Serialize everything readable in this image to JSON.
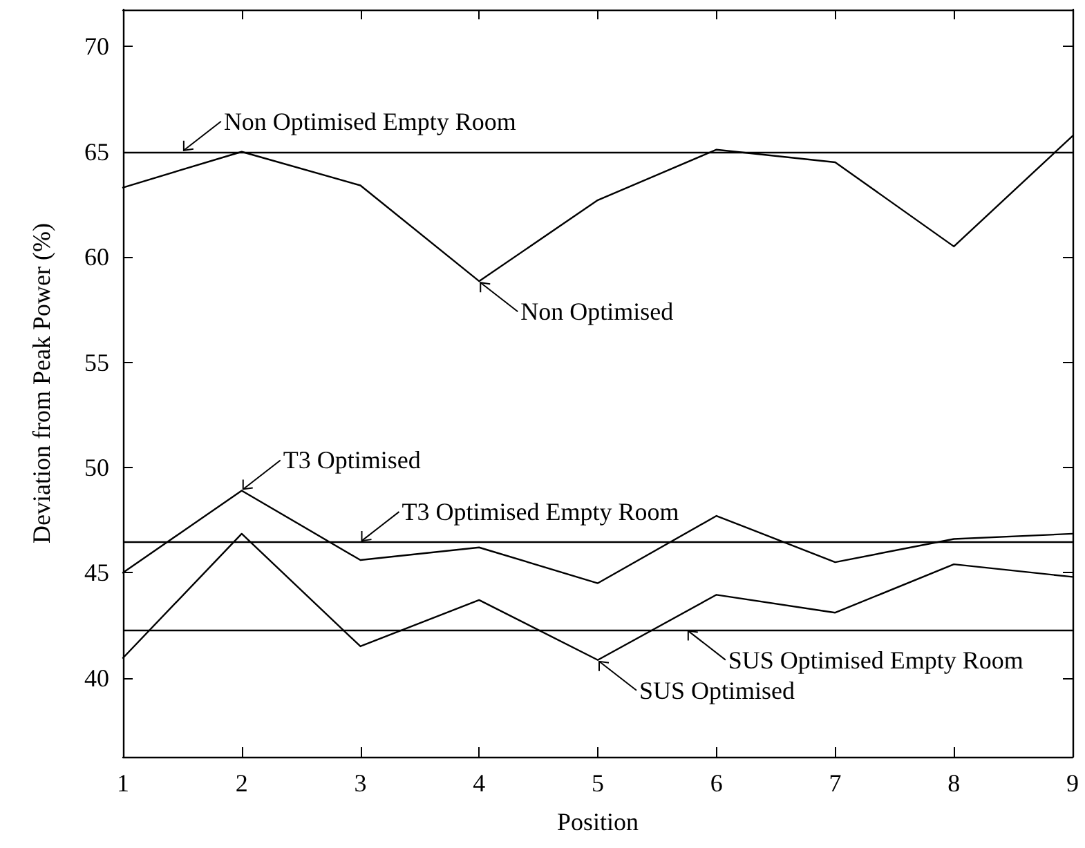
{
  "chart_data": {
    "type": "line",
    "xlabel": "Position",
    "ylabel": "Deviation from Peak Power (%)",
    "x": [
      1,
      2,
      3,
      4,
      5,
      6,
      7,
      8,
      9
    ],
    "series": [
      {
        "color": "#000000",
        "values": [
          63.3,
          65.0,
          63.4,
          58.85,
          62.7,
          65.1,
          64.5,
          60.5,
          65.75
        ]
      },
      {
        "color": "#000000",
        "values": [
          45.0,
          48.9,
          45.6,
          46.2,
          44.5,
          47.7,
          45.5,
          46.6,
          46.85
        ]
      },
      {
        "color": "#000000",
        "values": [
          40.95,
          46.85,
          41.5,
          43.7,
          40.85,
          43.95,
          43.1,
          45.4,
          44.8
        ]
      }
    ],
    "ref_lines": [
      {
        "axis": "y",
        "value": 65,
        "color": "#000000"
      },
      {
        "axis": "y",
        "value": 46.45,
        "color": "#000000"
      },
      {
        "axis": "y",
        "value": 42.3,
        "color": "#000000"
      }
    ],
    "annotations": [
      {
        "text": "Non Optimised Empty Room",
        "x": 1.5,
        "y": 65
      },
      {
        "text": "Non Optimised",
        "x": 4,
        "y": 58.85
      },
      {
        "text": "T3 Optimised",
        "x": 2,
        "y": 48.9
      },
      {
        "text": "T3 Optimised Empty Room",
        "x": 3,
        "y": 46.45
      },
      {
        "text": "SUS Optimised Empty Room",
        "x": 5.75,
        "y": 42.3
      },
      {
        "text": "SUS Optimised",
        "x": 5,
        "y": 40.85
      }
    ],
    "xlim": [
      1,
      9
    ],
    "xticks": [
      1,
      2,
      3,
      4,
      5,
      6,
      7,
      8,
      9
    ],
    "ylim": [
      36.25,
      71.75
    ],
    "yticks": [
      40,
      45,
      50,
      55,
      60,
      65,
      70
    ],
    "marker": "none",
    "line_style": "solid"
  }
}
